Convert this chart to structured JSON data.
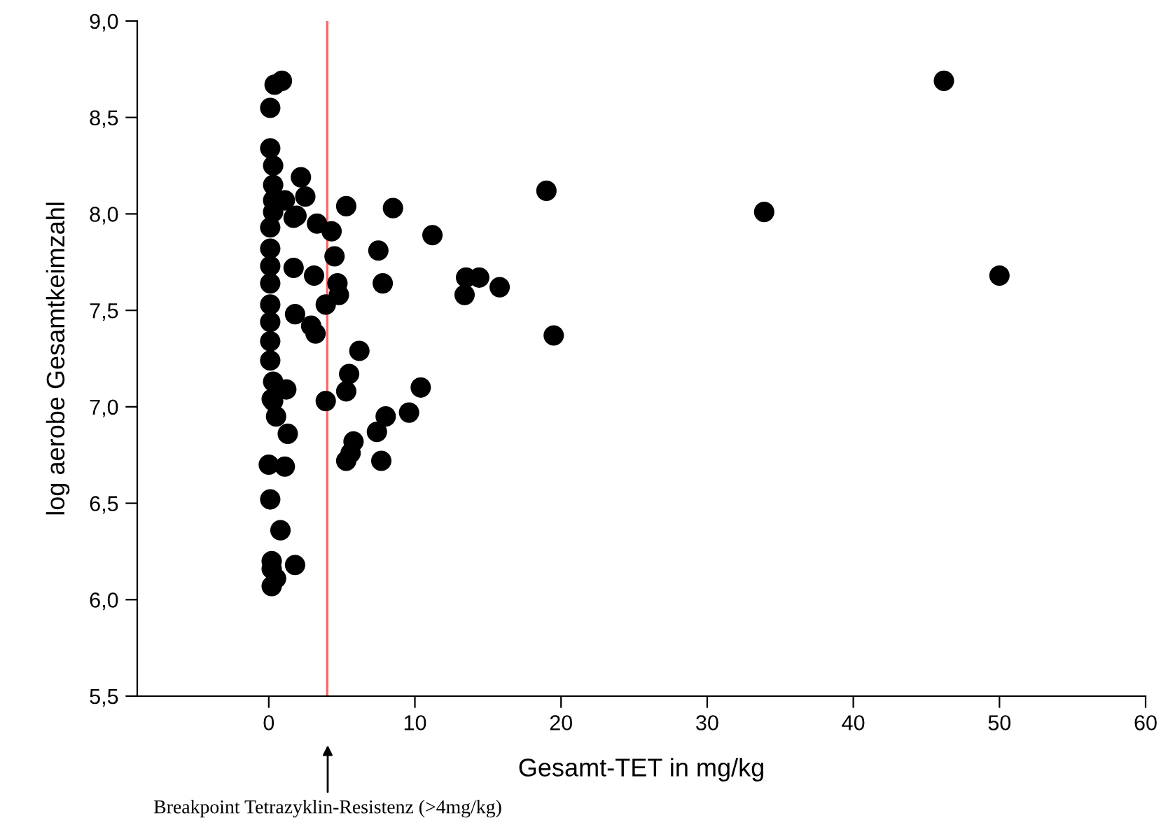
{
  "chart_data": {
    "type": "scatter",
    "xlabel": "Gesamt-TET in mg/kg",
    "ylabel": "log aerobe Gesamtkeimzahl",
    "xlim": [
      -9,
      60
    ],
    "xticks": [
      0,
      10,
      20,
      30,
      40,
      50,
      60
    ],
    "ylim": [
      5.5,
      9.0
    ],
    "yticks": [
      {
        "value": 5.5,
        "label": "5,5"
      },
      {
        "value": 6.0,
        "label": "6,0"
      },
      {
        "value": 6.5,
        "label": "6,5"
      },
      {
        "value": 7.0,
        "label": "7,0"
      },
      {
        "value": 7.5,
        "label": "7,5"
      },
      {
        "value": 8.0,
        "label": "8,0"
      },
      {
        "value": 8.5,
        "label": "8,5"
      },
      {
        "value": 9.0,
        "label": "9,0"
      }
    ],
    "grid": false,
    "legend": false,
    "marker": "circle",
    "series": [
      {
        "color": "#000000",
        "x": [
          0.4,
          0.9,
          0.1,
          0.1,
          0.3,
          2.2,
          0.3,
          2.5,
          1.1,
          0.3,
          0.3,
          5.3,
          8.5,
          1.9,
          3.3,
          0.1,
          1.7,
          4.3,
          11.2,
          0.1,
          4.5,
          7.5,
          0.1,
          1.7,
          3.1,
          4.7,
          7.8,
          13.5,
          14.4,
          13.4,
          15.8,
          0.1,
          4.8,
          3.9,
          0.1,
          1.8,
          2.9,
          3.2,
          0.1,
          0.1,
          0.1,
          6.2,
          0.3,
          1.2,
          5.5,
          5.3,
          10.4,
          3.9,
          0.3,
          0.5,
          8.0,
          9.6,
          0.2,
          7.4,
          1.3,
          5.8,
          5.6,
          5.3,
          7.7,
          0.0,
          1.1,
          0.1,
          0.8,
          0.2,
          1.8,
          0.2,
          0.5,
          0.2,
          19.0,
          19.5,
          33.9,
          46.2,
          50.0
        ],
        "values": [
          8.67,
          8.69,
          8.55,
          8.34,
          8.25,
          8.19,
          8.15,
          8.09,
          8.07,
          8.07,
          8.01,
          8.04,
          8.03,
          7.99,
          7.95,
          7.93,
          7.98,
          7.91,
          7.89,
          7.82,
          7.78,
          7.81,
          7.73,
          7.72,
          7.68,
          7.64,
          7.64,
          7.67,
          7.67,
          7.58,
          7.62,
          7.64,
          7.58,
          7.53,
          7.53,
          7.48,
          7.42,
          7.38,
          7.44,
          7.34,
          7.24,
          7.29,
          7.13,
          7.09,
          7.17,
          7.08,
          7.1,
          7.03,
          7.03,
          6.95,
          6.95,
          6.97,
          7.04,
          6.87,
          6.86,
          6.82,
          6.76,
          6.72,
          6.72,
          6.7,
          6.69,
          6.52,
          6.36,
          6.2,
          6.18,
          6.16,
          6.11,
          6.07,
          8.12,
          7.37,
          8.01,
          8.69,
          7.68
        ]
      }
    ],
    "ref_lines": [
      {
        "axis": "x",
        "value": 4,
        "color": "#ff6666",
        "line_style": "solid"
      }
    ],
    "annotations": [
      "Breakpoint Tetrazyklin-Resistenz (>4mg/kg)"
    ]
  }
}
